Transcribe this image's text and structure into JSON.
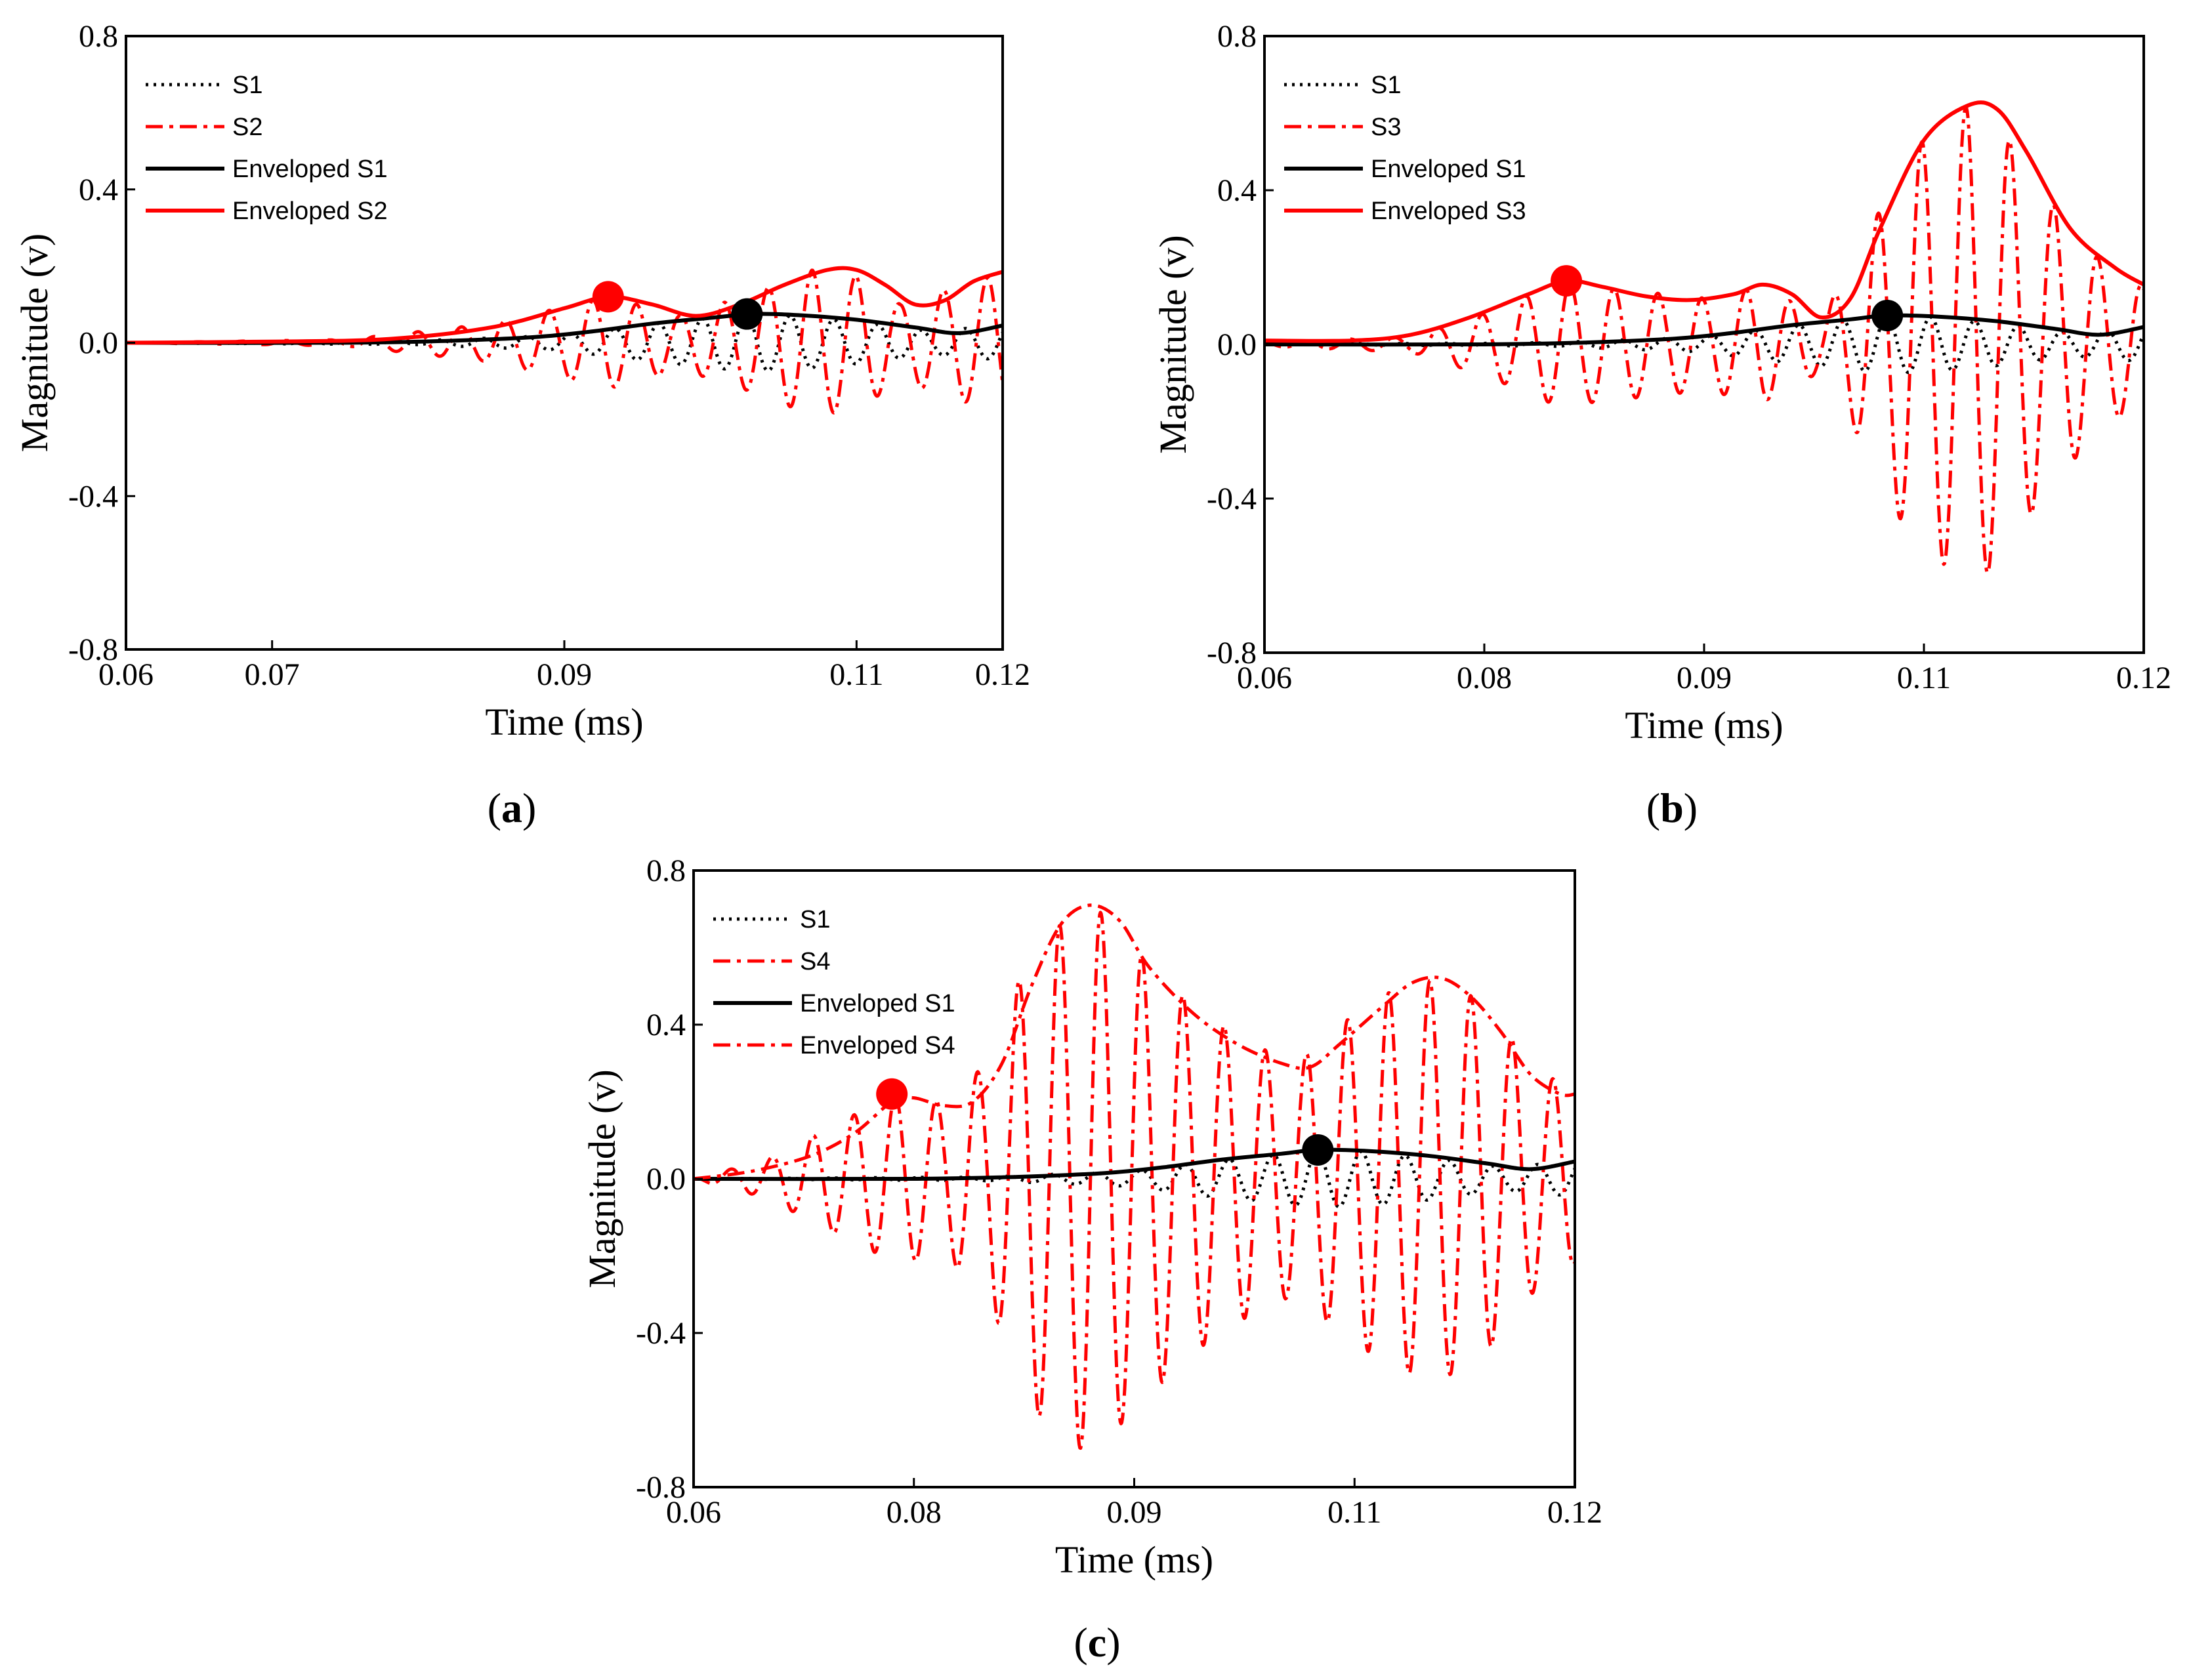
{
  "figure": {
    "panels": [
      {
        "id": "a",
        "label_prefix": "(",
        "label_letter": "a",
        "label_suffix": ")"
      },
      {
        "id": "b",
        "label_prefix": "(",
        "label_letter": "b",
        "label_suffix": ")"
      },
      {
        "id": "c",
        "label_prefix": "(",
        "label_letter": "c",
        "label_suffix": ")"
      }
    ]
  },
  "chart_data": [
    {
      "panel": "a",
      "type": "line",
      "xlabel": "Time (ms)",
      "ylabel": "Magnitude (v)",
      "xlim": [
        0.06,
        0.12
      ],
      "ylim": [
        -0.8,
        0.8
      ],
      "x_ticks": [
        0.06,
        0.07,
        0.09,
        0.11,
        0.12
      ],
      "x_tick_labels": [
        "0.06",
        "0.07",
        "0.09",
        "0.11",
        "0.12"
      ],
      "y_ticks": [
        0.8,
        0.4,
        0.0,
        -0.4,
        -0.8
      ],
      "y_tick_labels": [
        "0.8",
        "0.4",
        "0.0",
        "-0.4",
        "-0.8"
      ],
      "legend_position": "top-left",
      "series": [
        {
          "name": "S1",
          "color": "#000000",
          "style": "dotted",
          "kind": "oscillation",
          "envelope": [
            [
              0.06,
              0.0
            ],
            [
              0.08,
              0.005
            ],
            [
              0.09,
              0.02
            ],
            [
              0.095,
              0.045
            ],
            [
              0.1,
              0.065
            ],
            [
              0.103,
              0.075
            ],
            [
              0.106,
              0.07
            ],
            [
              0.11,
              0.055
            ],
            [
              0.115,
              0.03
            ],
            [
              0.12,
              0.045
            ]
          ],
          "period": 0.003,
          "phase": 0.1
        },
        {
          "name": "S2",
          "color": "#ff0000",
          "style": "dashdot",
          "kind": "oscillation",
          "envelope": [
            [
              0.06,
              0.0
            ],
            [
              0.075,
              0.008
            ],
            [
              0.085,
              0.05
            ],
            [
              0.093,
              0.12
            ],
            [
              0.098,
              0.07
            ],
            [
              0.103,
              0.13
            ],
            [
              0.107,
              0.19
            ],
            [
              0.11,
              0.175
            ],
            [
              0.113,
              0.1
            ],
            [
              0.117,
              0.15
            ],
            [
              0.12,
              0.18
            ]
          ],
          "period": 0.003,
          "phase": 0.6
        },
        {
          "name": "Enveloped S1",
          "color": "#000000",
          "style": "solid",
          "kind": "envelope",
          "points": [
            [
              0.06,
              0.0
            ],
            [
              0.075,
              0.0
            ],
            [
              0.082,
              0.005
            ],
            [
              0.088,
              0.015
            ],
            [
              0.092,
              0.03
            ],
            [
              0.096,
              0.05
            ],
            [
              0.1,
              0.065
            ],
            [
              0.103,
              0.075
            ],
            [
              0.106,
              0.072
            ],
            [
              0.11,
              0.06
            ],
            [
              0.114,
              0.04
            ],
            [
              0.117,
              0.025
            ],
            [
              0.12,
              0.045
            ]
          ]
        },
        {
          "name": "Enveloped S2",
          "color": "#ff0000",
          "style": "solid",
          "kind": "envelope",
          "points": [
            [
              0.06,
              0.0
            ],
            [
              0.07,
              0.003
            ],
            [
              0.078,
              0.01
            ],
            [
              0.085,
              0.04
            ],
            [
              0.09,
              0.09
            ],
            [
              0.093,
              0.12
            ],
            [
              0.096,
              0.1
            ],
            [
              0.099,
              0.07
            ],
            [
              0.102,
              0.1
            ],
            [
              0.105,
              0.15
            ],
            [
              0.108,
              0.19
            ],
            [
              0.11,
              0.19
            ],
            [
              0.112,
              0.15
            ],
            [
              0.114,
              0.1
            ],
            [
              0.116,
              0.11
            ],
            [
              0.118,
              0.16
            ],
            [
              0.12,
              0.185
            ]
          ]
        }
      ],
      "markers": [
        {
          "x": 0.093,
          "y": 0.12,
          "color": "#ff0000"
        },
        {
          "x": 0.1025,
          "y": 0.075,
          "color": "#000000"
        }
      ]
    },
    {
      "panel": "b",
      "type": "line",
      "xlabel": "Time (ms)",
      "ylabel": "Magnitude (v)",
      "xlim": [
        0.06,
        0.12
      ],
      "ylim": [
        -0.8,
        0.8
      ],
      "x_ticks": [
        0.06,
        0.075,
        0.09,
        0.105,
        0.12
      ],
      "x_tick_labels": [
        "0.06",
        "0.08",
        "0.09",
        "0.11",
        "0.12"
      ],
      "y_ticks": [
        0.8,
        0.4,
        0.0,
        -0.4,
        -0.8
      ],
      "y_tick_labels": [
        "0.8",
        "0.4",
        "0.0",
        "-0.4",
        "-0.8"
      ],
      "legend_position": "top-left",
      "series": [
        {
          "name": "S1",
          "color": "#000000",
          "style": "dotted",
          "kind": "oscillation",
          "envelope": [
            [
              0.06,
              0.0
            ],
            [
              0.08,
              0.005
            ],
            [
              0.09,
              0.02
            ],
            [
              0.095,
              0.045
            ],
            [
              0.1,
              0.065
            ],
            [
              0.1025,
              0.075
            ],
            [
              0.106,
              0.07
            ],
            [
              0.11,
              0.055
            ],
            [
              0.115,
              0.03
            ],
            [
              0.12,
              0.045
            ]
          ],
          "period": 0.003,
          "phase": 0.1
        },
        {
          "name": "S3",
          "color": "#ff0000",
          "style": "dashdot",
          "kind": "oscillation",
          "envelope": [
            [
              0.06,
              0.005
            ],
            [
              0.07,
              0.02
            ],
            [
              0.075,
              0.08
            ],
            [
              0.08,
              0.16
            ],
            [
              0.085,
              0.14
            ],
            [
              0.09,
              0.12
            ],
            [
              0.094,
              0.15
            ],
            [
              0.098,
              0.07
            ],
            [
              0.1,
              0.2
            ],
            [
              0.104,
              0.5
            ],
            [
              0.108,
              0.62
            ],
            [
              0.11,
              0.58
            ],
            [
              0.113,
              0.4
            ],
            [
              0.117,
              0.22
            ],
            [
              0.12,
              0.15
            ]
          ],
          "period": 0.003,
          "phase": 0.3
        },
        {
          "name": "Enveloped S1",
          "color": "#000000",
          "style": "solid",
          "kind": "envelope",
          "points": [
            [
              0.06,
              0.0
            ],
            [
              0.075,
              0.0
            ],
            [
              0.082,
              0.005
            ],
            [
              0.088,
              0.015
            ],
            [
              0.092,
              0.03
            ],
            [
              0.096,
              0.05
            ],
            [
              0.1,
              0.065
            ],
            [
              0.1025,
              0.075
            ],
            [
              0.106,
              0.072
            ],
            [
              0.11,
              0.06
            ],
            [
              0.114,
              0.04
            ],
            [
              0.117,
              0.025
            ],
            [
              0.12,
              0.045
            ]
          ]
        },
        {
          "name": "Enveloped S3",
          "color": "#ff0000",
          "style": "solid",
          "kind": "envelope",
          "points": [
            [
              0.06,
              0.01
            ],
            [
              0.066,
              0.01
            ],
            [
              0.07,
              0.025
            ],
            [
              0.074,
              0.07
            ],
            [
              0.078,
              0.13
            ],
            [
              0.0806,
              0.165
            ],
            [
              0.083,
              0.15
            ],
            [
              0.086,
              0.125
            ],
            [
              0.089,
              0.115
            ],
            [
              0.092,
              0.13
            ],
            [
              0.094,
              0.155
            ],
            [
              0.096,
              0.13
            ],
            [
              0.098,
              0.07
            ],
            [
              0.1,
              0.12
            ],
            [
              0.102,
              0.3
            ],
            [
              0.105,
              0.53
            ],
            [
              0.108,
              0.62
            ],
            [
              0.11,
              0.61
            ],
            [
              0.112,
              0.5
            ],
            [
              0.115,
              0.3
            ],
            [
              0.118,
              0.2
            ],
            [
              0.12,
              0.155
            ]
          ]
        }
      ],
      "markers": [
        {
          "x": 0.0806,
          "y": 0.165,
          "color": "#ff0000"
        },
        {
          "x": 0.1025,
          "y": 0.075,
          "color": "#000000"
        }
      ]
    },
    {
      "panel": "c",
      "type": "line",
      "xlabel": "Time (ms)",
      "ylabel": "Magnitude (v)",
      "xlim": [
        0.06,
        0.12
      ],
      "ylim": [
        -0.8,
        0.8
      ],
      "x_ticks": [
        0.06,
        0.075,
        0.09,
        0.105,
        0.12
      ],
      "x_tick_labels": [
        "0.06",
        "0.08",
        "0.09",
        "0.11",
        "0.12"
      ],
      "y_ticks": [
        0.8,
        0.4,
        0.0,
        -0.4,
        -0.8
      ],
      "y_tick_labels": [
        "0.8",
        "0.4",
        "0.0",
        "-0.4",
        "-0.8"
      ],
      "legend_position": "top-left",
      "series": [
        {
          "name": "S1",
          "color": "#000000",
          "style": "dotted",
          "kind": "oscillation",
          "envelope": [
            [
              0.06,
              0.0
            ],
            [
              0.08,
              0.005
            ],
            [
              0.09,
              0.02
            ],
            [
              0.095,
              0.045
            ],
            [
              0.1,
              0.065
            ],
            [
              0.1025,
              0.075
            ],
            [
              0.106,
              0.07
            ],
            [
              0.11,
              0.055
            ],
            [
              0.115,
              0.03
            ],
            [
              0.12,
              0.045
            ]
          ],
          "period": 0.003,
          "phase": 0.1
        },
        {
          "name": "S4",
          "color": "#ff0000",
          "style": "dashdot",
          "kind": "oscillation",
          "envelope": [
            [
              0.06,
              0.0
            ],
            [
              0.065,
              0.05
            ],
            [
              0.07,
              0.15
            ],
            [
              0.074,
              0.22
            ],
            [
              0.077,
              0.2
            ],
            [
              0.08,
              0.3
            ],
            [
              0.083,
              0.6
            ],
            [
              0.087,
              0.72
            ],
            [
              0.09,
              0.6
            ],
            [
              0.094,
              0.45
            ],
            [
              0.098,
              0.35
            ],
            [
              0.101,
              0.3
            ],
            [
              0.104,
              0.4
            ],
            [
              0.108,
              0.5
            ],
            [
              0.111,
              0.52
            ],
            [
              0.114,
              0.45
            ],
            [
              0.117,
              0.3
            ],
            [
              0.12,
              0.22
            ]
          ],
          "period": 0.0028,
          "phase": 0.35
        },
        {
          "name": "Enveloped S1",
          "color": "#000000",
          "style": "solid",
          "kind": "envelope",
          "points": [
            [
              0.06,
              0.0
            ],
            [
              0.075,
              0.0
            ],
            [
              0.082,
              0.005
            ],
            [
              0.088,
              0.015
            ],
            [
              0.092,
              0.03
            ],
            [
              0.096,
              0.05
            ],
            [
              0.1,
              0.065
            ],
            [
              0.1025,
              0.075
            ],
            [
              0.106,
              0.072
            ],
            [
              0.11,
              0.06
            ],
            [
              0.114,
              0.04
            ],
            [
              0.117,
              0.025
            ],
            [
              0.12,
              0.045
            ]
          ]
        },
        {
          "name": "Enveloped S4",
          "color": "#ff0000",
          "style": "dashdot",
          "kind": "envelope",
          "points": [
            [
              0.06,
              0.0
            ],
            [
              0.064,
              0.02
            ],
            [
              0.068,
              0.06
            ],
            [
              0.071,
              0.12
            ],
            [
              0.0735,
              0.2
            ],
            [
              0.075,
              0.21
            ],
            [
              0.077,
              0.19
            ],
            [
              0.079,
              0.2
            ],
            [
              0.081,
              0.3
            ],
            [
              0.083,
              0.5
            ],
            [
              0.085,
              0.66
            ],
            [
              0.087,
              0.71
            ],
            [
              0.089,
              0.67
            ],
            [
              0.091,
              0.55
            ],
            [
              0.094,
              0.43
            ],
            [
              0.097,
              0.35
            ],
            [
              0.1,
              0.3
            ],
            [
              0.102,
              0.29
            ],
            [
              0.104,
              0.35
            ],
            [
              0.107,
              0.45
            ],
            [
              0.109,
              0.51
            ],
            [
              0.111,
              0.52
            ],
            [
              0.113,
              0.47
            ],
            [
              0.115,
              0.38
            ],
            [
              0.117,
              0.27
            ],
            [
              0.119,
              0.22
            ],
            [
              0.12,
              0.22
            ]
          ]
        }
      ],
      "markers": [
        {
          "x": 0.0735,
          "y": 0.22,
          "color": "#ff0000"
        },
        {
          "x": 0.1025,
          "y": 0.075,
          "color": "#000000"
        }
      ]
    }
  ]
}
